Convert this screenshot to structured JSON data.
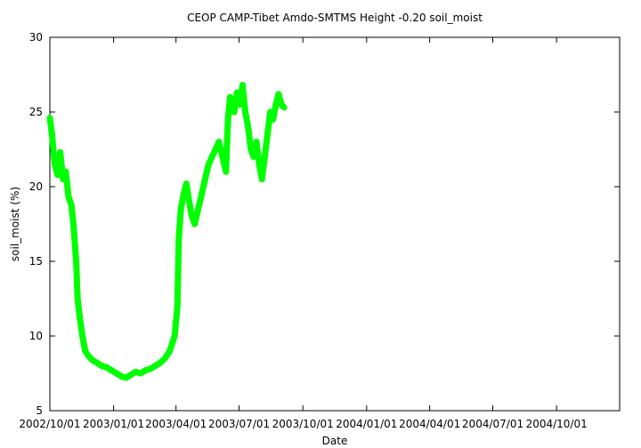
{
  "chart_data": {
    "type": "scatter",
    "title": "CEOP CAMP-Tibet Amdo-SMTMS Height -0.20 soil_moist",
    "xlabel": "Date",
    "ylabel": "soil_moist (%)",
    "xlim": [
      "2002-10-01",
      "2004-12-31"
    ],
    "ylim": [
      5,
      30
    ],
    "grid": false,
    "legend": "none",
    "marker_color": "#00ff00",
    "y_ticks": [
      5,
      10,
      15,
      20,
      25,
      30
    ],
    "x_ticks": [
      {
        "date": "2002-10-01",
        "label": "2002/10/01"
      },
      {
        "date": "2003-01-01",
        "label": "2003/01/01"
      },
      {
        "date": "2003-04-01",
        "label": "2003/04/01"
      },
      {
        "date": "2003-07-01",
        "label": "2003/07/01"
      },
      {
        "date": "2003-10-01",
        "label": "2003/10/01"
      },
      {
        "date": "2004-01-01",
        "label": "2004/01/01"
      },
      {
        "date": "2004-04-01",
        "label": "2004/04/01"
      },
      {
        "date": "2004-07-01",
        "label": "2004/07/01"
      },
      {
        "date": "2004-10-01",
        "label": "2004/10/01"
      }
    ],
    "series": [
      {
        "x": [
          "2002-10-01",
          "2002-10-04",
          "2002-10-08",
          "2002-10-12",
          "2002-10-16",
          "2002-10-20",
          "2002-10-24",
          "2002-10-28",
          "2002-11-01",
          "2002-11-04",
          "2002-11-08",
          "2002-11-10",
          "2002-11-13",
          "2002-11-17",
          "2002-11-21",
          "2002-11-25",
          "2002-12-01",
          "2002-12-08",
          "2002-12-15",
          "2002-12-22",
          "2002-12-29",
          "2003-01-05",
          "2003-01-12",
          "2003-01-19",
          "2003-01-26",
          "2003-02-02",
          "2003-02-09",
          "2003-02-16",
          "2003-02-23",
          "2003-03-02",
          "2003-03-09",
          "2003-03-16",
          "2003-03-23",
          "2003-03-30",
          "2003-04-03",
          "2003-04-05",
          "2003-04-08",
          "2003-04-12",
          "2003-04-16",
          "2003-04-20",
          "2003-04-24",
          "2003-04-28",
          "2003-05-03",
          "2003-05-08",
          "2003-05-13",
          "2003-05-18",
          "2003-05-23",
          "2003-05-28",
          "2003-06-02",
          "2003-06-07",
          "2003-06-12",
          "2003-06-15",
          "2003-06-18",
          "2003-06-21",
          "2003-06-24",
          "2003-06-28",
          "2003-07-02",
          "2003-07-06",
          "2003-07-10",
          "2003-07-14",
          "2003-07-18",
          "2003-07-22",
          "2003-07-26",
          "2003-07-30",
          "2003-08-03",
          "2003-08-07",
          "2003-08-11",
          "2003-08-15",
          "2003-08-19",
          "2003-08-23",
          "2003-08-27",
          "2003-08-31",
          "2003-09-04"
        ],
        "y": [
          24.6,
          23.5,
          21.5,
          20.8,
          22.3,
          20.5,
          21.0,
          19.3,
          18.8,
          17.5,
          15.0,
          12.5,
          11.3,
          10.0,
          9.0,
          8.7,
          8.4,
          8.2,
          8.0,
          7.9,
          7.7,
          7.5,
          7.3,
          7.2,
          7.4,
          7.6,
          7.5,
          7.7,
          7.8,
          8.0,
          8.2,
          8.5,
          9.0,
          10.0,
          12.0,
          16.5,
          18.5,
          19.5,
          20.2,
          19.0,
          18.0,
          17.5,
          18.5,
          19.5,
          20.5,
          21.5,
          22.0,
          22.5,
          23.0,
          22.0,
          21.0,
          24.5,
          26.0,
          25.5,
          25.0,
          26.3,
          25.5,
          26.8,
          25.0,
          24.0,
          22.5,
          22.0,
          23.0,
          21.5,
          20.5,
          22.0,
          23.5,
          25.0,
          24.5,
          25.5,
          26.2,
          25.5,
          25.3
        ]
      }
    ]
  }
}
